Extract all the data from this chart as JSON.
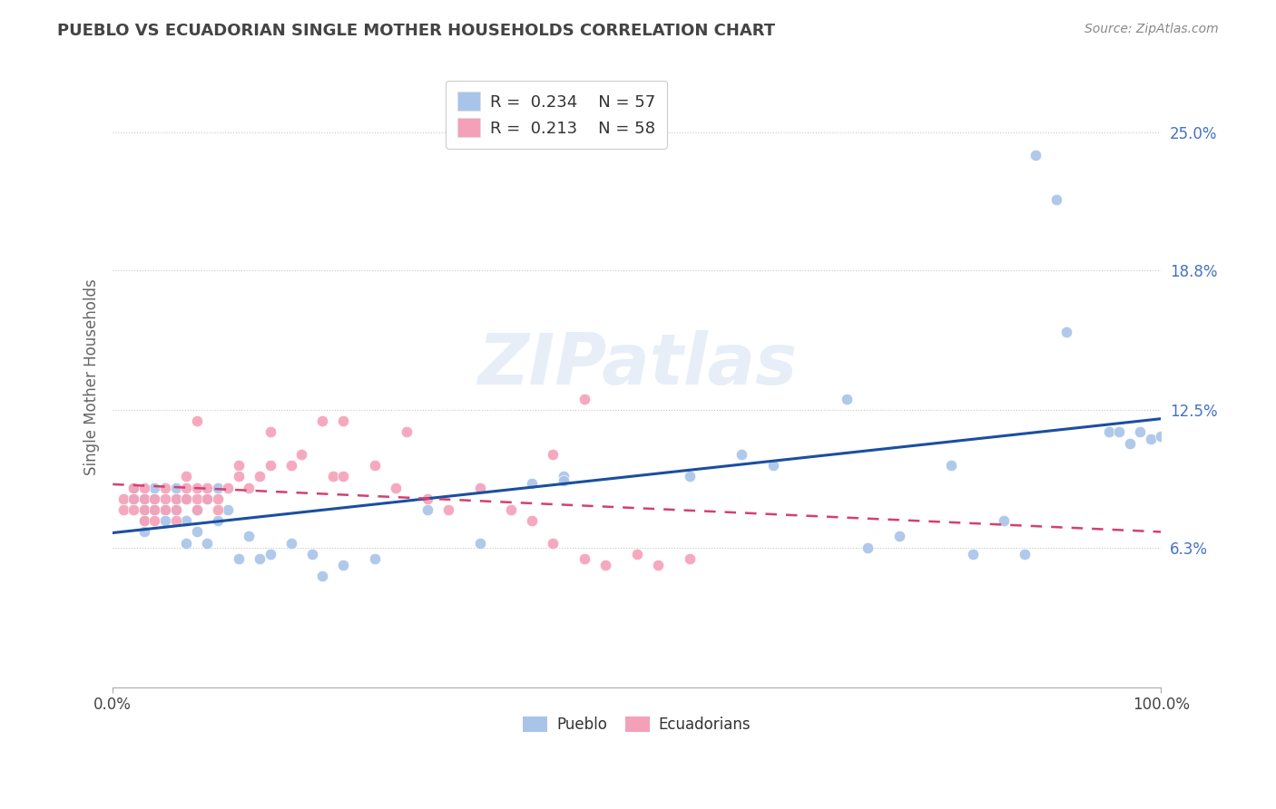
{
  "title": "PUEBLO VS ECUADORIAN SINGLE MOTHER HOUSEHOLDS CORRELATION CHART",
  "source": "Source: ZipAtlas.com",
  "ylabel": "Single Mother Households",
  "watermark": "ZIPatlas",
  "xlim": [
    0.0,
    1.0
  ],
  "ylim": [
    0.0,
    0.28
  ],
  "ytick_values": [
    0.063,
    0.125,
    0.188,
    0.25
  ],
  "ytick_labels": [
    "6.3%",
    "12.5%",
    "18.8%",
    "25.0%"
  ],
  "xtick_values": [
    0.0,
    1.0
  ],
  "xtick_labels": [
    "0.0%",
    "100.0%"
  ],
  "legend_r1": "0.234",
  "legend_n1": "57",
  "legend_r2": "0.213",
  "legend_n2": "58",
  "blue_color": "#a8c4e8",
  "pink_color": "#f4a0b8",
  "trendline_blue": "#1a4fa0",
  "trendline_pink": "#d44070",
  "grid_color": "#c8c8c8",
  "title_color": "#444444",
  "source_color": "#888888",
  "ytick_color": "#4472c4",
  "xtick_color": "#444444",
  "watermark_color": "#d0dff0",
  "pueblo_x": [
    0.02,
    0.02,
    0.03,
    0.03,
    0.03,
    0.03,
    0.04,
    0.04,
    0.04,
    0.05,
    0.05,
    0.06,
    0.06,
    0.06,
    0.07,
    0.07,
    0.07,
    0.08,
    0.08,
    0.09,
    0.09,
    0.1,
    0.1,
    0.11,
    0.12,
    0.13,
    0.14,
    0.15,
    0.17,
    0.19,
    0.2,
    0.22,
    0.25,
    0.3,
    0.35,
    0.4,
    0.43,
    0.43,
    0.55,
    0.6,
    0.63,
    0.7,
    0.72,
    0.75,
    0.8,
    0.82,
    0.85,
    0.87,
    0.88,
    0.9,
    0.91,
    0.95,
    0.96,
    0.97,
    0.98,
    0.99,
    1.0
  ],
  "pueblo_y": [
    0.085,
    0.09,
    0.08,
    0.085,
    0.075,
    0.07,
    0.08,
    0.085,
    0.09,
    0.075,
    0.08,
    0.085,
    0.09,
    0.08,
    0.075,
    0.085,
    0.065,
    0.08,
    0.07,
    0.085,
    0.065,
    0.075,
    0.09,
    0.08,
    0.058,
    0.068,
    0.058,
    0.06,
    0.065,
    0.06,
    0.05,
    0.055,
    0.058,
    0.08,
    0.065,
    0.092,
    0.095,
    0.093,
    0.095,
    0.105,
    0.1,
    0.13,
    0.063,
    0.068,
    0.1,
    0.06,
    0.075,
    0.06,
    0.24,
    0.22,
    0.16,
    0.115,
    0.115,
    0.11,
    0.115,
    0.112,
    0.113
  ],
  "ecuador_x": [
    0.01,
    0.01,
    0.02,
    0.02,
    0.02,
    0.03,
    0.03,
    0.03,
    0.03,
    0.04,
    0.04,
    0.04,
    0.05,
    0.05,
    0.05,
    0.06,
    0.06,
    0.06,
    0.07,
    0.07,
    0.07,
    0.08,
    0.08,
    0.08,
    0.09,
    0.09,
    0.1,
    0.1,
    0.11,
    0.12,
    0.12,
    0.13,
    0.14,
    0.15,
    0.15,
    0.17,
    0.18,
    0.2,
    0.21,
    0.22,
    0.22,
    0.25,
    0.27,
    0.28,
    0.3,
    0.32,
    0.35,
    0.38,
    0.4,
    0.42,
    0.45,
    0.47,
    0.5,
    0.52,
    0.55,
    0.42,
    0.08,
    0.45
  ],
  "ecuador_y": [
    0.08,
    0.085,
    0.08,
    0.085,
    0.09,
    0.08,
    0.085,
    0.075,
    0.09,
    0.075,
    0.085,
    0.08,
    0.085,
    0.08,
    0.09,
    0.08,
    0.085,
    0.075,
    0.09,
    0.085,
    0.095,
    0.08,
    0.085,
    0.09,
    0.085,
    0.09,
    0.08,
    0.085,
    0.09,
    0.1,
    0.095,
    0.09,
    0.095,
    0.115,
    0.1,
    0.1,
    0.105,
    0.12,
    0.095,
    0.12,
    0.095,
    0.1,
    0.09,
    0.115,
    0.085,
    0.08,
    0.09,
    0.08,
    0.075,
    0.065,
    0.058,
    0.055,
    0.06,
    0.055,
    0.058,
    0.105,
    0.12,
    0.13
  ]
}
